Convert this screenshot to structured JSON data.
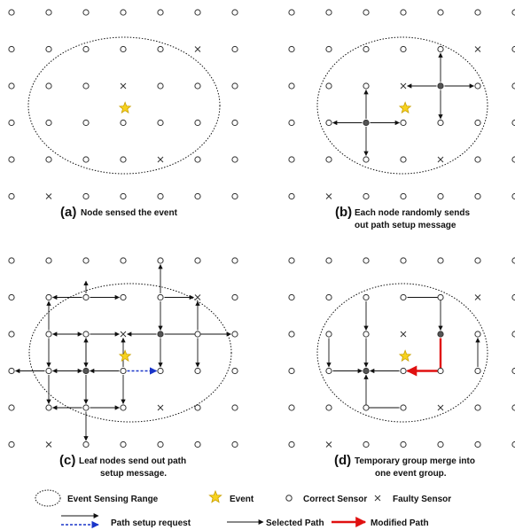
{
  "colors": {
    "line": "#111111",
    "node_stroke": "#333333",
    "node_fill_gray": "#555555",
    "event_fill": "#f7d21e",
    "event_stroke": "#c9a000",
    "request": "#1a35c9",
    "modified": "#e01010"
  },
  "panels": [
    {
      "letter": "(a)",
      "caption": [
        "Node sensed the event"
      ]
    },
    {
      "letter": "(b)",
      "caption": [
        "Each node randomly sends",
        "out path setup message"
      ]
    },
    {
      "letter": "(c)",
      "caption": [
        "Leaf nodes send out path",
        "setup message."
      ]
    },
    {
      "letter": "(d)",
      "caption": [
        "Temporary group merge into",
        "one event group."
      ]
    }
  ],
  "legend": {
    "sensing_range": "Event Sensing Range",
    "event": "Event",
    "correct_sensor": "Correct Sensor",
    "faulty_sensor": "Faulty Sensor",
    "path_setup_request": "Path setup request",
    "selected_path": "Selected Path",
    "modified_path": "Modified Path"
  },
  "icons": {
    "event": "star-icon",
    "correct_sensor": "circle-icon",
    "faulty_sensor": "cross-icon"
  }
}
